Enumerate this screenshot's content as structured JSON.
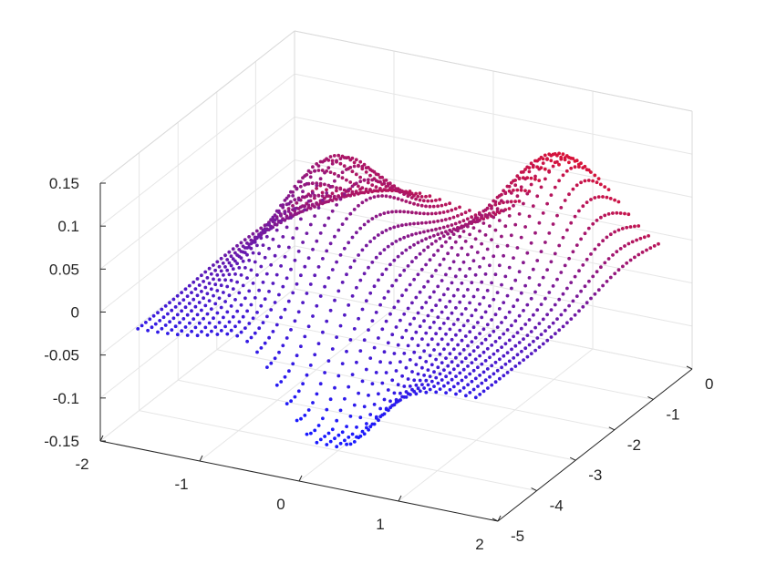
{
  "chart_data": {
    "type": "scatter",
    "projection": "3d",
    "title": "",
    "xlabel": "",
    "ylabel": "",
    "zlabel": "",
    "grid": true,
    "xlim": [
      -2,
      2
    ],
    "ylim": [
      -5,
      0
    ],
    "zlim": [
      -0.15,
      0.15
    ],
    "x_ticks": [
      "-2",
      "-1",
      "0",
      "1",
      "2"
    ],
    "y_ticks": [
      "-5",
      "-4",
      "-3",
      "-2",
      "-1",
      "0"
    ],
    "z_ticks": [
      "-0.15",
      "-0.1",
      "-0.05",
      "0",
      "0.05",
      "0.1",
      "0.15"
    ],
    "colormap": {
      "low": "#1a1aff",
      "mid": "#7a1a9a",
      "high": "#ff1010"
    },
    "surface": {
      "description_points": "sampled surface z = f(x,y) over x in [-1.7,1.7], y in [-4.8,-0.1]",
      "x_range": [
        -1.7,
        1.7
      ],
      "y_range": [
        -4.8,
        -0.1
      ],
      "x_steps": 34,
      "y_steps": 46,
      "trough_z_min": -0.11,
      "peak_z_max": 0.13
    }
  }
}
